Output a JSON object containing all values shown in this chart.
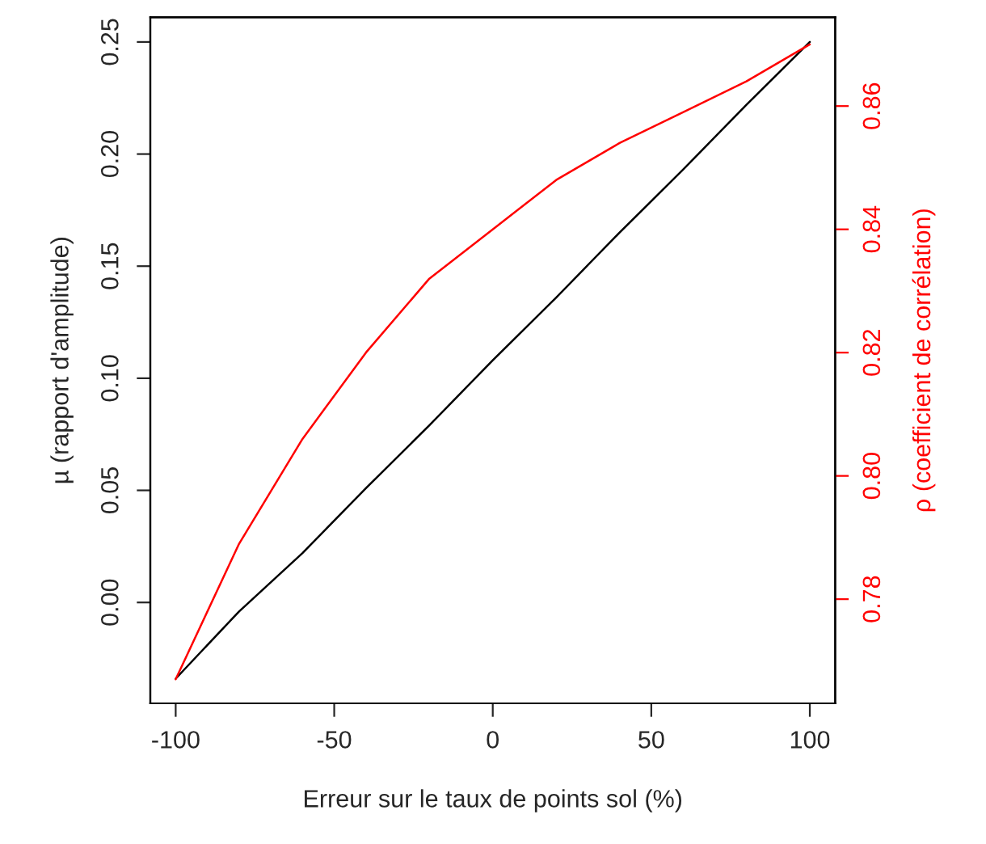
{
  "chart_data": {
    "type": "line",
    "x": [
      -100,
      -80,
      -60,
      -40,
      -20,
      0,
      20,
      40,
      60,
      80,
      100
    ],
    "series": [
      {
        "color": "#000000",
        "values": [
          -0.034,
          -0.004,
          0.022,
          0.051,
          0.079,
          0.108,
          0.136,
          0.165,
          0.193,
          0.222,
          0.25
        ]
      },
      {
        "color": "#ff0000",
        "axis": "y2",
        "values": [
          0.767,
          0.789,
          0.806,
          0.82,
          0.832,
          0.84,
          0.848,
          0.854,
          0.859,
          0.864,
          0.87
        ]
      }
    ],
    "xlabel": "Erreur sur le taux de points sol (%)",
    "ylabel": "µ (rapport d'amplitude)",
    "y2label": "ρ (coefficient de corrélation)",
    "xlim": [
      -108,
      108
    ],
    "xticks": [
      -100,
      -50,
      0,
      50,
      100
    ],
    "ylim": [
      -0.045,
      0.261
    ],
    "yticks": [
      {
        "value": 0,
        "label": "0.00"
      },
      0.05,
      {
        "value": 0.1,
        "label": "0.10"
      },
      0.15,
      {
        "value": 0.2,
        "label": "0.20"
      },
      0.25
    ],
    "y2lim": [
      0.7631,
      0.8744
    ],
    "y2ticks": [
      0.78,
      {
        "value": 0.8,
        "label": "0.80"
      },
      0.82,
      0.84,
      0.86
    ],
    "grid": false
  }
}
